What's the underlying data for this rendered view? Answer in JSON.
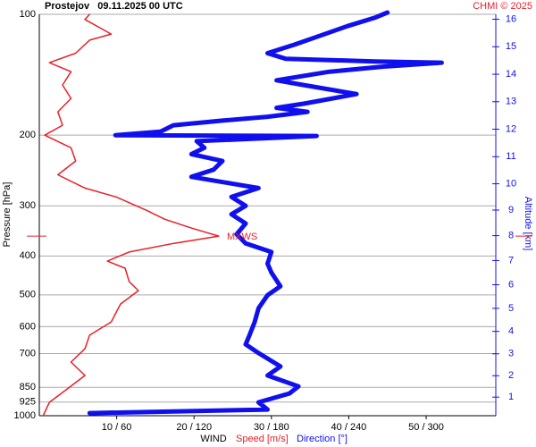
{
  "chart_data": {
    "type": "wind-profile",
    "title": "Prostejov   09.11.2025 00 UTC",
    "credit": "CHMI © 2025",
    "ylabel": "Pressure [hPa]",
    "y2label": "Altitude [km]",
    "xlabel": "WIND",
    "ylim": [
      1000,
      100
    ],
    "log_y": true,
    "yticks": [
      100,
      200,
      300,
      400,
      500,
      600,
      700,
      850,
      925,
      1000
    ],
    "y2ticks": [
      1,
      2,
      3,
      4,
      5,
      6,
      7,
      8,
      9,
      10,
      11,
      12,
      13,
      14,
      15,
      16
    ],
    "xlim": [
      0,
      59
    ],
    "x2lim": [
      0,
      354
    ],
    "xticks": [
      {
        "value": 10,
        "label": "10 / 60"
      },
      {
        "value": 20,
        "label": "20 / 120"
      },
      {
        "value": 30,
        "label": "30 / 180"
      },
      {
        "value": 40,
        "label": "40 / 240"
      },
      {
        "value": 50,
        "label": "50 / 300"
      }
    ],
    "grid": true,
    "annotation": {
      "text": "MXWS",
      "pressure": 357,
      "color": "#e8202a"
    },
    "series": [
      {
        "name": "Speed [m/s]",
        "color": "#e8202a",
        "axis": "x",
        "pressure": [
          100,
          103,
          112,
          116,
          125,
          132,
          139,
          150,
          162,
          175,
          189,
          200,
          215,
          232,
          251,
          271,
          285,
          308,
          324,
          341,
          357,
          372,
          391,
          412,
          429,
          463,
          488,
          527,
          584,
          630,
          681,
          735,
          794,
          858,
          926,
          1000
        ],
        "values": [
          6.5,
          5.9,
          9.3,
          6.5,
          4.7,
          1.3,
          4.1,
          3.0,
          4.1,
          2.4,
          3.0,
          0.7,
          4.1,
          4.7,
          2.4,
          5.9,
          9.9,
          13.9,
          16.2,
          19.7,
          23.2,
          17.4,
          11.6,
          8.8,
          11.1,
          11.6,
          12.8,
          10.5,
          9.3,
          6.5,
          5.9,
          4.1,
          5.9,
          3.6,
          1.3,
          0.5
        ]
      },
      {
        "name": "Direction [°]",
        "color": "#1010ee",
        "axis": "x2",
        "pressure": [
          99,
          102,
          107,
          113,
          119,
          125,
          129,
          131,
          132,
          135,
          139,
          146,
          150,
          158,
          167,
          171,
          175,
          180,
          184,
          189,
          196,
          200,
          201,
          207,
          215,
          223,
          232,
          244,
          254,
          264,
          271,
          285,
          300,
          315,
          332,
          353,
          372,
          391,
          418,
          440,
          476,
          501,
          540,
          584,
          630,
          664,
          698,
          754,
          794,
          845,
          880,
          926,
          965,
          985
        ],
        "values": [
          270,
          260,
          239,
          218,
          198,
          177,
          191,
          260,
          312,
          267,
          225,
          184,
          205,
          246,
          205,
          184,
          208,
          177,
          142,
          104,
          94,
          59,
          215,
          122,
          128,
          118,
          142,
          135,
          118,
          149,
          170,
          149,
          160,
          149,
          160,
          153,
          160,
          180,
          177,
          180,
          187,
          177,
          170,
          167,
          163,
          160,
          170,
          187,
          177,
          201,
          194,
          170,
          177,
          39
        ]
      }
    ]
  }
}
